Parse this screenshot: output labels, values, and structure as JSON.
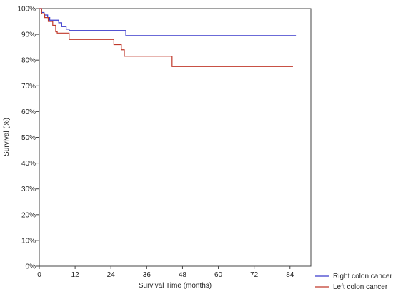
{
  "chart_data": {
    "type": "line",
    "step": true,
    "title": "",
    "xlabel": "Survival Time (months)",
    "ylabel": "Survival (%)",
    "xlim": [
      0,
      91
    ],
    "ylim": [
      0,
      100
    ],
    "xticks": [
      0,
      12,
      24,
      36,
      48,
      60,
      72,
      84
    ],
    "yticks": [
      0,
      10,
      20,
      30,
      40,
      50,
      60,
      70,
      80,
      90,
      100
    ],
    "ytick_suffix": "%",
    "grid": false,
    "legend_position": "bottom-right",
    "series": [
      {
        "name": "Right colon cancer",
        "color": "#3a3acc",
        "points": [
          [
            0,
            100
          ],
          [
            0.8,
            98.5
          ],
          [
            1.6,
            97.5
          ],
          [
            2.8,
            96.5
          ],
          [
            3.5,
            95.5
          ],
          [
            6.5,
            94.5
          ],
          [
            7.5,
            93
          ],
          [
            9,
            92
          ],
          [
            10,
            91.5
          ],
          [
            29,
            89.5
          ],
          [
            86,
            89.5
          ]
        ]
      },
      {
        "name": "Left colon cancer",
        "color": "#c0392b",
        "points": [
          [
            0,
            100
          ],
          [
            0.8,
            98
          ],
          [
            1.8,
            96.5
          ],
          [
            3,
            95
          ],
          [
            4.5,
            93.5
          ],
          [
            5.5,
            91
          ],
          [
            6,
            90.5
          ],
          [
            10,
            88
          ],
          [
            25,
            86
          ],
          [
            27.5,
            84
          ],
          [
            28.5,
            81.5
          ],
          [
            44.5,
            77.5
          ],
          [
            85,
            77.5
          ]
        ]
      }
    ]
  }
}
